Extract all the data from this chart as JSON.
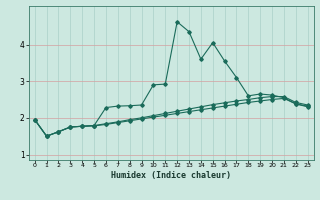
{
  "xlabel": "Humidex (Indice chaleur)",
  "background_color": "#cce8e0",
  "grid_color": "#aad0c8",
  "line_color": "#1a6b5a",
  "x": [
    0,
    1,
    2,
    3,
    4,
    5,
    6,
    7,
    8,
    9,
    10,
    11,
    12,
    13,
    14,
    15,
    16,
    17,
    18,
    19,
    20,
    21,
    22,
    23
  ],
  "line1": [
    1.95,
    1.5,
    1.62,
    1.75,
    1.77,
    1.79,
    2.28,
    2.32,
    2.33,
    2.35,
    2.9,
    2.92,
    4.62,
    4.35,
    3.6,
    4.05,
    3.55,
    3.1,
    2.6,
    2.65,
    2.62,
    2.55,
    2.38,
    2.32
  ],
  "line2": [
    1.95,
    1.5,
    1.62,
    1.75,
    1.77,
    1.79,
    1.84,
    1.89,
    1.95,
    2.0,
    2.06,
    2.12,
    2.18,
    2.24,
    2.3,
    2.36,
    2.41,
    2.46,
    2.5,
    2.55,
    2.58,
    2.58,
    2.42,
    2.35
  ],
  "line3": [
    1.95,
    1.5,
    1.62,
    1.75,
    1.77,
    1.78,
    1.82,
    1.87,
    1.92,
    1.97,
    2.02,
    2.07,
    2.12,
    2.17,
    2.22,
    2.27,
    2.32,
    2.37,
    2.42,
    2.46,
    2.5,
    2.53,
    2.38,
    2.3
  ],
  "ylim": [
    0.85,
    5.05
  ],
  "xlim": [
    -0.5,
    23.5
  ],
  "yticks": [
    1,
    2,
    3,
    4
  ],
  "xticks": [
    0,
    1,
    2,
    3,
    4,
    5,
    6,
    7,
    8,
    9,
    10,
    11,
    12,
    13,
    14,
    15,
    16,
    17,
    18,
    19,
    20,
    21,
    22,
    23
  ]
}
